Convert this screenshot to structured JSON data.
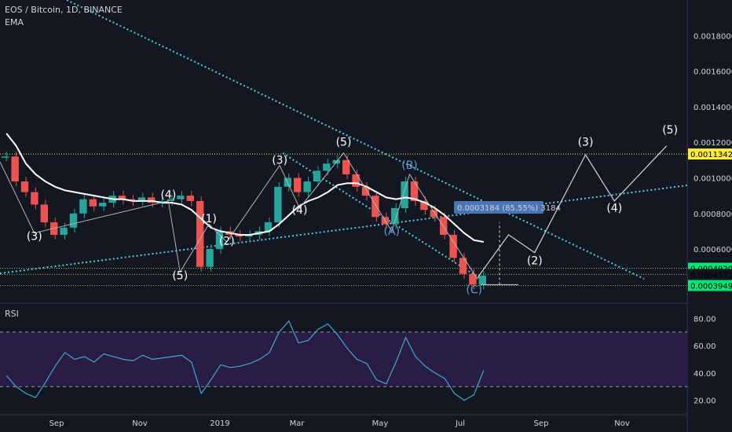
{
  "header": {
    "title": "EOS / Bitcoin, 1D, BINANCE",
    "indicator": "EMA"
  },
  "rsi_label": "RSI",
  "measure_label": "0.0003184 (85.55%) 3184",
  "colors": {
    "background": "#131722",
    "up": "#26a69a",
    "down": "#ef5350",
    "ema": "#ffffff",
    "trend": "#4dd0e1",
    "level": "#cddc39",
    "rsi": "#3fa7d6",
    "rsi_band": "#2a1d44"
  },
  "chart_data": [
    {
      "type": "line",
      "title": "EOS / Bitcoin, 1D, BINANCE",
      "x_ticks": [
        "Sep",
        "Nov",
        "2019",
        "Mar",
        "May",
        "Jul",
        "Sep",
        "Nov"
      ],
      "y_ticks": [
        "0.0018000",
        "0.0016000",
        "0.0014000",
        "0.0012000",
        "0.0010000",
        "0.0008000",
        "0.0006000"
      ],
      "ylim": [
        0.0003,
        0.002
      ],
      "horizontal_levels": [
        {
          "label": "0.0011342",
          "value": 0.0011342
        },
        {
          "label": "0.0004920",
          "value": 0.000492
        },
        {
          "label": "0.0004572",
          "value": 0.0004572
        },
        {
          "label": "0.0003949",
          "value": 0.0003949
        }
      ],
      "price_series": [
        0.00112,
        0.00098,
        0.00092,
        0.00085,
        0.00075,
        0.00068,
        0.00072,
        0.0008,
        0.00088,
        0.00084,
        0.00086,
        0.0009,
        0.00088,
        0.00087,
        0.00089,
        0.00086,
        0.00087,
        0.00088,
        0.0009,
        0.00087,
        0.0005,
        0.0006,
        0.0007,
        0.00068,
        0.00067,
        0.00068,
        0.0007,
        0.00075,
        0.00095,
        0.001,
        0.00092,
        0.00098,
        0.00104,
        0.00108,
        0.0011,
        0.00102,
        0.00095,
        0.0009,
        0.00078,
        0.00074,
        0.00083,
        0.00098,
        0.00087,
        0.00082,
        0.00078,
        0.00068,
        0.00055,
        0.00046,
        0.0004,
        0.00045
      ],
      "ema_series": [
        0.00125,
        0.00118,
        0.00108,
        0.00102,
        0.00098,
        0.00095,
        0.00093,
        0.00092,
        0.00091,
        0.0009,
        0.00089,
        0.00088,
        0.00088,
        0.00087,
        0.00087,
        0.00087,
        0.00086,
        0.00086,
        0.00085,
        0.00082,
        0.00077,
        0.00072,
        0.0007,
        0.00069,
        0.00068,
        0.00068,
        0.00069,
        0.0007,
        0.00074,
        0.00079,
        0.00084,
        0.00087,
        0.00089,
        0.00092,
        0.00096,
        0.00097,
        0.00097,
        0.00095,
        0.00092,
        0.00089,
        0.00088,
        0.00089,
        0.00088,
        0.00086,
        0.00083,
        0.00079,
        0.00074,
        0.00069,
        0.00065,
        0.00064
      ],
      "wave_labels": [
        {
          "text": "(3)",
          "x": 0.05,
          "y": 0.00065,
          "color": "white"
        },
        {
          "text": "(4)",
          "x": 0.245,
          "y": 0.000885,
          "color": "white"
        },
        {
          "text": "(5)",
          "x": 0.262,
          "y": 0.00043,
          "color": "white"
        },
        {
          "text": "(1)",
          "x": 0.304,
          "y": 0.00075,
          "color": "white"
        },
        {
          "text": "(2)",
          "x": 0.33,
          "y": 0.000625,
          "color": "white"
        },
        {
          "text": "(3)",
          "x": 0.407,
          "y": 0.00108,
          "color": "white"
        },
        {
          "text": "(4)",
          "x": 0.436,
          "y": 0.0008,
          "color": "white"
        },
        {
          "text": "(5)",
          "x": 0.5,
          "y": 0.00118,
          "color": "white"
        },
        {
          "text": "(A)",
          "x": 0.57,
          "y": 0.00068,
          "color": "blue"
        },
        {
          "text": "(B)",
          "x": 0.596,
          "y": 0.00105,
          "color": "blue"
        },
        {
          "text": "(C)",
          "x": 0.69,
          "y": 0.00035,
          "color": "blue"
        },
        {
          "text": "(2)",
          "x": 0.778,
          "y": 0.000515,
          "color": "white"
        },
        {
          "text": "(3)",
          "x": 0.852,
          "y": 0.00118,
          "color": "white"
        },
        {
          "text": "(4)",
          "x": 0.894,
          "y": 0.00081,
          "color": "white"
        },
        {
          "text": "(5)",
          "x": 0.975,
          "y": 0.00125,
          "color": "white"
        }
      ],
      "projection": [
        [
          0.695,
          0.00044
        ],
        [
          0.74,
          0.00068
        ],
        [
          0.778,
          0.00058
        ],
        [
          0.852,
          0.00113
        ],
        [
          0.894,
          0.00087
        ],
        [
          0.97,
          0.00118
        ]
      ]
    },
    {
      "type": "line",
      "title": "RSI",
      "y_ticks": [
        "80.00",
        "60.00",
        "40.00",
        "20.00"
      ],
      "ylim": [
        10,
        90
      ],
      "bands": [
        70,
        30
      ],
      "values": [
        38,
        30,
        25,
        22,
        33,
        45,
        55,
        50,
        52,
        48,
        54,
        52,
        50,
        49,
        53,
        50,
        51,
        52,
        53,
        48,
        25,
        35,
        46,
        44,
        45,
        47,
        50,
        55,
        70,
        78,
        62,
        64,
        72,
        76,
        68,
        58,
        50,
        47,
        35,
        32,
        48,
        66,
        52,
        45,
        40,
        36,
        25,
        20,
        24,
        42
      ]
    }
  ]
}
